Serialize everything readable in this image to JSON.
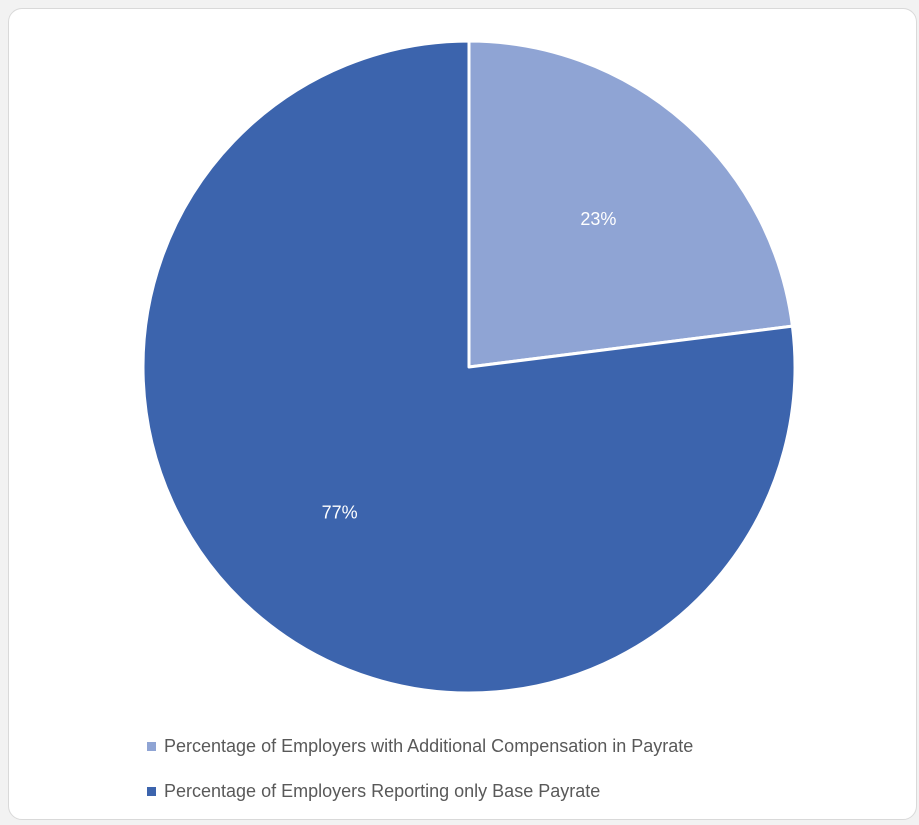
{
  "chart_data": {
    "type": "pie",
    "series": [
      {
        "name": "Percentage of Employers with Additional Compensation in Payrate",
        "value": 23,
        "label": "23%",
        "color": "#8fa4d4"
      },
      {
        "name": "Percentage of Employers Reporting only Base Payrate",
        "value": 77,
        "label": "77%",
        "color": "#3c64ad"
      }
    ],
    "start_angle": "12 o'clock",
    "direction": "clockwise",
    "legend_position": "bottom-left"
  },
  "legend": {
    "items": [
      {
        "label": "Percentage of Employers with Additional Compensation in Payrate",
        "color": "#8fa4d4"
      },
      {
        "label": "Percentage of Employers Reporting only Base Payrate",
        "color": "#3c64ad"
      }
    ]
  }
}
